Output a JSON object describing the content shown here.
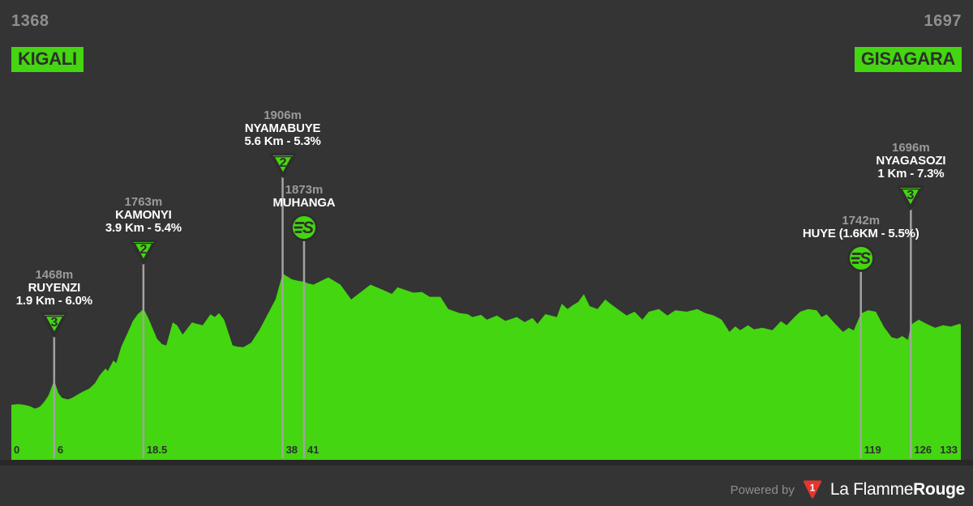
{
  "route": {
    "start": {
      "elevation": "1368",
      "name": "KIGALI"
    },
    "end": {
      "elevation": "1697",
      "name": "GISAGARA"
    }
  },
  "colors": {
    "background": "#343434",
    "profile_green": "#44d610",
    "marker_line": "#a3a3a3",
    "dark_text": "#2e2e2e",
    "gray_text": "#8f8f8f",
    "white_text": "#ffffff",
    "brand_red": "#e5372f"
  },
  "icons": {
    "kom_marker": "inverted-triangle-category",
    "sprint_marker": "circle-sprint-s",
    "brand_logo": "red-triangle-1"
  },
  "footer": {
    "powered_by": "Powered by",
    "logo_digit": "1",
    "brand_light": "La Flamme",
    "brand_bold": "Rouge"
  },
  "chart_data": {
    "type": "area",
    "title": "",
    "xlabel": "",
    "ylabel": "",
    "x_unit": "km",
    "y_unit": "m",
    "xlim": [
      0,
      133
    ],
    "ylim": [
      1142,
      1960
    ],
    "start_elevation_m": 1368,
    "end_elevation_m": 1697,
    "x_ticks": [
      {
        "label": "0",
        "km": 0,
        "has_line": false
      },
      {
        "label": "6",
        "km": 6,
        "has_line": true
      },
      {
        "label": "18.5",
        "km": 18.5,
        "has_line": true
      },
      {
        "label": "38",
        "km": 38,
        "has_line": true
      },
      {
        "label": "41",
        "km": 41,
        "has_line": true
      },
      {
        "label": "119",
        "km": 119,
        "has_line": true
      },
      {
        "label": "126",
        "km": 126,
        "has_line": true
      },
      {
        "label": "133",
        "km": 133,
        "has_line": false
      }
    ],
    "markers": [
      {
        "name": "RUYENZI",
        "elevation": "1468m",
        "detail": "1.9 Km - 6.0%",
        "type": "kom",
        "category": "3",
        "km": 6
      },
      {
        "name": "KAMONYI",
        "elevation": "1763m",
        "detail": "3.9 Km - 5.4%",
        "type": "kom",
        "category": "2",
        "km": 18.5
      },
      {
        "name": "NYAMABUYE",
        "elevation": "1906m",
        "detail": "5.6 Km - 5.3%",
        "type": "kom",
        "category": "2",
        "km": 38
      },
      {
        "name": "MUHANGA",
        "elevation": "1873m",
        "detail": "",
        "type": "sprint",
        "category": "",
        "km": 41
      },
      {
        "name": "HUYE (1.6KM - 5.5%)",
        "elevation": "1742m",
        "detail": "",
        "type": "sprint",
        "category": "",
        "km": 119
      },
      {
        "name": "NYAGASOZI",
        "elevation": "1696m",
        "detail": "1 Km - 7.3%",
        "type": "kom",
        "category": "3",
        "km": 126
      }
    ],
    "profile_km_elev": [
      [
        0,
        1368
      ],
      [
        1,
        1371
      ],
      [
        1.8,
        1368
      ],
      [
        2.6,
        1362
      ],
      [
        3.3,
        1352
      ],
      [
        4,
        1360
      ],
      [
        4.6,
        1380
      ],
      [
        5.2,
        1406
      ],
      [
        6,
        1468
      ],
      [
        6.6,
        1415
      ],
      [
        7.1,
        1396
      ],
      [
        7.9,
        1390
      ],
      [
        8.5,
        1396
      ],
      [
        9.4,
        1412
      ],
      [
        10.1,
        1423
      ],
      [
        10.9,
        1434
      ],
      [
        11.7,
        1456
      ],
      [
        12.4,
        1490
      ],
      [
        13.2,
        1517
      ],
      [
        13.5,
        1506
      ],
      [
        14.3,
        1550
      ],
      [
        14.7,
        1539
      ],
      [
        15.4,
        1606
      ],
      [
        16,
        1645
      ],
      [
        16.6,
        1684
      ],
      [
        17,
        1711
      ],
      [
        17.7,
        1739
      ],
      [
        18.1,
        1750
      ],
      [
        18.5,
        1763
      ],
      [
        19.2,
        1723
      ],
      [
        20.4,
        1639
      ],
      [
        21.1,
        1617
      ],
      [
        21.7,
        1611
      ],
      [
        22.6,
        1706
      ],
      [
        23.2,
        1694
      ],
      [
        24,
        1656
      ],
      [
        25.3,
        1706
      ],
      [
        26,
        1700
      ],
      [
        26.8,
        1694
      ],
      [
        27.9,
        1739
      ],
      [
        28.5,
        1728
      ],
      [
        29.1,
        1744
      ],
      [
        29.8,
        1717
      ],
      [
        31,
        1611
      ],
      [
        31.7,
        1606
      ],
      [
        32.5,
        1604
      ],
      [
        33.6,
        1623
      ],
      [
        34.8,
        1678
      ],
      [
        35.9,
        1739
      ],
      [
        37,
        1800
      ],
      [
        38,
        1906
      ],
      [
        39.3,
        1883
      ],
      [
        40.1,
        1877
      ],
      [
        41,
        1873
      ],
      [
        41.6,
        1866
      ],
      [
        42.3,
        1861
      ],
      [
        44.4,
        1891
      ],
      [
        46.1,
        1861
      ],
      [
        47.6,
        1800
      ],
      [
        50.3,
        1861
      ],
      [
        52,
        1840
      ],
      [
        53.3,
        1823
      ],
      [
        54.1,
        1850
      ],
      [
        56.3,
        1828
      ],
      [
        57.5,
        1831
      ],
      [
        58.6,
        1811
      ],
      [
        60.1,
        1811
      ],
      [
        61.2,
        1761
      ],
      [
        62.8,
        1744
      ],
      [
        63.9,
        1740
      ],
      [
        64.6,
        1728
      ],
      [
        65.8,
        1737
      ],
      [
        66.6,
        1717
      ],
      [
        68,
        1734
      ],
      [
        69.2,
        1712
      ],
      [
        70.8,
        1728
      ],
      [
        71.9,
        1707
      ],
      [
        73,
        1724
      ],
      [
        73.7,
        1700
      ],
      [
        74.8,
        1740
      ],
      [
        76.4,
        1728
      ],
      [
        77.1,
        1783
      ],
      [
        77.9,
        1761
      ],
      [
        78.7,
        1778
      ],
      [
        79.4,
        1790
      ],
      [
        80.2,
        1822
      ],
      [
        81,
        1773
      ],
      [
        82.1,
        1761
      ],
      [
        83.2,
        1800
      ],
      [
        83.9,
        1783
      ],
      [
        85.1,
        1757
      ],
      [
        86.2,
        1734
      ],
      [
        87.3,
        1750
      ],
      [
        88.4,
        1717
      ],
      [
        89.3,
        1750
      ],
      [
        90.7,
        1761
      ],
      [
        91.9,
        1734
      ],
      [
        93,
        1756
      ],
      [
        94.6,
        1750
      ],
      [
        96.1,
        1761
      ],
      [
        97.2,
        1744
      ],
      [
        98.4,
        1734
      ],
      [
        99.5,
        1717
      ],
      [
        100.6,
        1667
      ],
      [
        101.4,
        1690
      ],
      [
        102.1,
        1674
      ],
      [
        103.2,
        1694
      ],
      [
        104,
        1678
      ],
      [
        105.2,
        1684
      ],
      [
        106.6,
        1674
      ],
      [
        107.8,
        1711
      ],
      [
        108.6,
        1694
      ],
      [
        109.7,
        1728
      ],
      [
        110.5,
        1750
      ],
      [
        111.6,
        1761
      ],
      [
        112.8,
        1756
      ],
      [
        113.5,
        1728
      ],
      [
        114.2,
        1739
      ],
      [
        115.4,
        1700
      ],
      [
        116.5,
        1667
      ],
      [
        117.3,
        1684
      ],
      [
        118,
        1673
      ],
      [
        119,
        1742
      ],
      [
        120,
        1756
      ],
      [
        121.1,
        1750
      ],
      [
        122.2,
        1689
      ],
      [
        123.3,
        1645
      ],
      [
        124.1,
        1639
      ],
      [
        124.8,
        1650
      ],
      [
        125.6,
        1634
      ],
      [
        126,
        1696
      ],
      [
        126.6,
        1708
      ],
      [
        127.1,
        1717
      ],
      [
        128.2,
        1700
      ],
      [
        129.4,
        1684
      ],
      [
        130.5,
        1694
      ],
      [
        131.6,
        1689
      ],
      [
        132.8,
        1700
      ],
      [
        133,
        1697
      ]
    ]
  }
}
